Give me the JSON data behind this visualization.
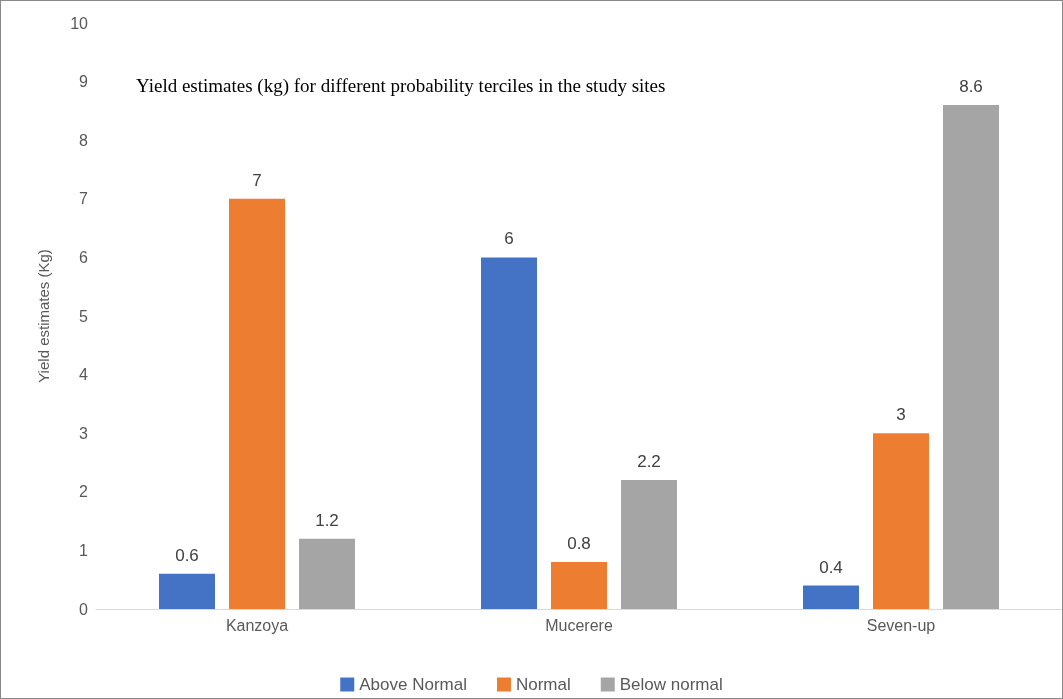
{
  "chart_data": {
    "type": "bar",
    "title": "Yield estimates (kg) for different probability terciles in the study sites",
    "ylabel": "Yield estimates (Kg)",
    "categories": [
      "Kanzoya",
      "Mucerere",
      "Seven-up"
    ],
    "series": [
      {
        "name": "Above Normal",
        "color": "#4472c4",
        "values": [
          0.6,
          6,
          0.4
        ]
      },
      {
        "name": "Normal",
        "color": "#ed7d31",
        "values": [
          7,
          0.8,
          3
        ]
      },
      {
        "name": "Below normal",
        "color": "#a5a5a5",
        "values": [
          1.2,
          2.2,
          8.6
        ]
      }
    ],
    "ylim": [
      0,
      10
    ],
    "yticks": [
      0,
      1,
      2,
      3,
      4,
      5,
      6,
      7,
      8,
      9,
      10
    ],
    "grid": false,
    "legend": "bottom",
    "data_labels": true
  }
}
